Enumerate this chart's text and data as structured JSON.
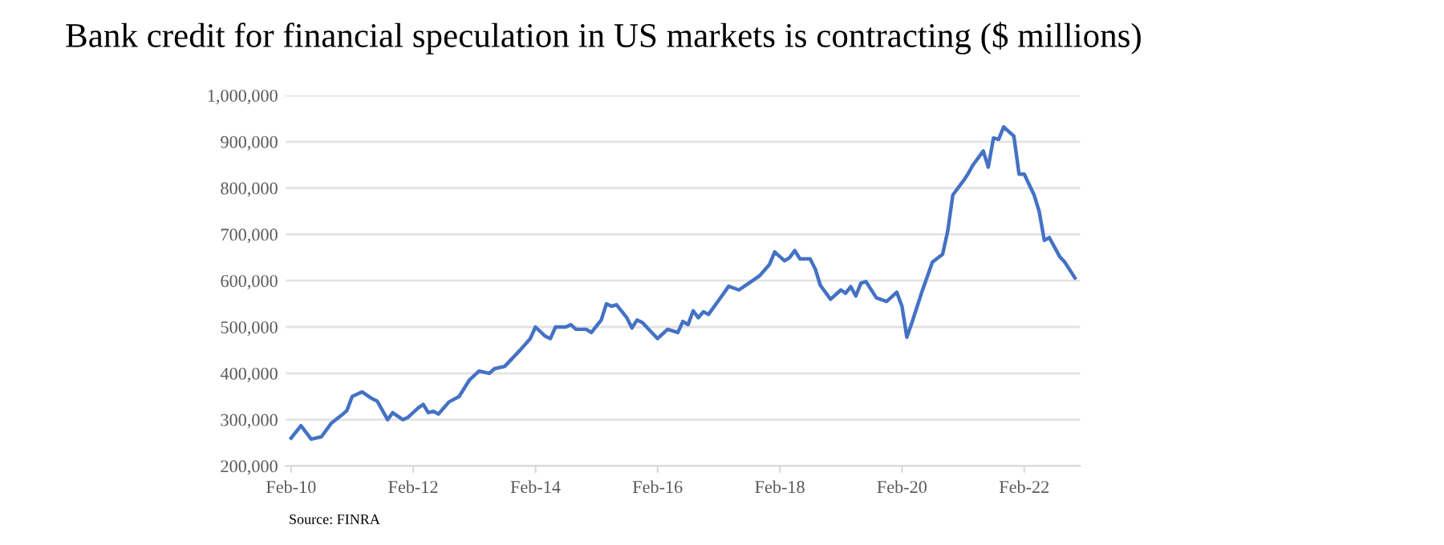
{
  "chart_data": {
    "type": "line",
    "title": "Bank credit for financial speculation in US markets is contracting ($ millions)",
    "annotations": [
      "Source: FINRA"
    ],
    "x": [
      "2010-02",
      "2010-04",
      "2010-06",
      "2010-08",
      "2010-10",
      "2010-12",
      "2011-01",
      "2011-02",
      "2011-04",
      "2011-06",
      "2011-07",
      "2011-09",
      "2011-10",
      "2011-12",
      "2012-01",
      "2012-03",
      "2012-04",
      "2012-05",
      "2012-06",
      "2012-07",
      "2012-09",
      "2012-11",
      "2013-01",
      "2013-03",
      "2013-05",
      "2013-06",
      "2013-08",
      "2013-11",
      "2014-01",
      "2014-02",
      "2014-04",
      "2014-05",
      "2014-06",
      "2014-08",
      "2014-09",
      "2014-10",
      "2014-12",
      "2015-01",
      "2015-03",
      "2015-04",
      "2015-05",
      "2015-06",
      "2015-08",
      "2015-09",
      "2015-10",
      "2015-11",
      "2016-02",
      "2016-04",
      "2016-06",
      "2016-07",
      "2016-08",
      "2016-09",
      "2016-10",
      "2016-11",
      "2016-12",
      "2017-02",
      "2017-04",
      "2017-06",
      "2017-08",
      "2017-10",
      "2017-12",
      "2018-01",
      "2018-03",
      "2018-04",
      "2018-05",
      "2018-06",
      "2018-08",
      "2018-09",
      "2018-10",
      "2018-12",
      "2019-02",
      "2019-03",
      "2019-04",
      "2019-05",
      "2019-06",
      "2019-07",
      "2019-09",
      "2019-11",
      "2020-01",
      "2020-02",
      "2020-03",
      "2020-04",
      "2020-06",
      "2020-08",
      "2020-10",
      "2020-11",
      "2020-12",
      "2021-02",
      "2021-03",
      "2021-04",
      "2021-06",
      "2021-07",
      "2021-08",
      "2021-09",
      "2021-10",
      "2021-12",
      "2022-01",
      "2022-02",
      "2022-04",
      "2022-05",
      "2022-06",
      "2022-07",
      "2022-09",
      "2022-10",
      "2022-12"
    ],
    "series": [
      {
        "color": "#4472c4",
        "values": [
          260000,
          287000,
          258000,
          263000,
          293000,
          310000,
          320000,
          350000,
          360000,
          345000,
          340000,
          300000,
          315000,
          300000,
          305000,
          325000,
          333000,
          315000,
          318000,
          312000,
          338000,
          350000,
          385000,
          405000,
          400000,
          410000,
          415000,
          450000,
          475000,
          500000,
          480000,
          475000,
          500000,
          500000,
          505000,
          495000,
          495000,
          488000,
          515000,
          550000,
          545000,
          548000,
          520000,
          498000,
          515000,
          510000,
          475000,
          495000,
          488000,
          512000,
          505000,
          535000,
          520000,
          533000,
          527000,
          558000,
          588000,
          580000,
          595000,
          610000,
          635000,
          662000,
          643000,
          650000,
          665000,
          647000,
          647000,
          625000,
          590000,
          560000,
          580000,
          573000,
          587000,
          567000,
          595000,
          598000,
          563000,
          555000,
          575000,
          545000,
          478000,
          510000,
          578000,
          640000,
          657000,
          708000,
          785000,
          815000,
          830000,
          850000,
          880000,
          845000,
          908000,
          905000,
          932000,
          912000,
          830000,
          830000,
          785000,
          750000,
          687000,
          693000,
          652000,
          640000,
          606000
        ]
      }
    ],
    "xlim": [
      "2010-01",
      "2023-01"
    ],
    "xticks": [
      {
        "value": "2010-02",
        "label": "Feb-10"
      },
      {
        "value": "2012-02",
        "label": "Feb-12"
      },
      {
        "value": "2014-02",
        "label": "Feb-14"
      },
      {
        "value": "2016-02",
        "label": "Feb-16"
      },
      {
        "value": "2018-02",
        "label": "Feb-18"
      },
      {
        "value": "2020-02",
        "label": "Feb-20"
      },
      {
        "value": "2022-02",
        "label": "Feb-22"
      }
    ],
    "ylim": [
      200000,
      1000000
    ],
    "yticks": [
      {
        "value": 200000,
        "label": "200,000"
      },
      {
        "value": 300000,
        "label": "300,000"
      },
      {
        "value": 400000,
        "label": "400,000"
      },
      {
        "value": 500000,
        "label": "500,000"
      },
      {
        "value": 600000,
        "label": "600,000"
      },
      {
        "value": 700000,
        "label": "700,000"
      },
      {
        "value": 800000,
        "label": "800,000"
      },
      {
        "value": 900000,
        "label": "900,000"
      },
      {
        "value": 1000000,
        "label": "1,000,000"
      }
    ],
    "grid": "y",
    "legend": false,
    "marker": "none",
    "line_style": "solid"
  }
}
